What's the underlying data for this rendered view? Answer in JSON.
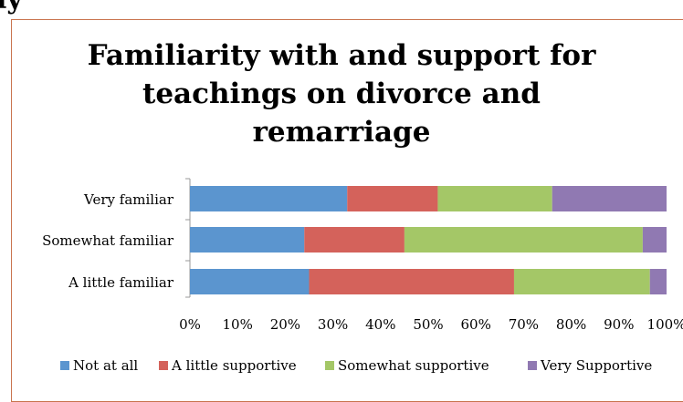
{
  "page": {
    "top_fragment": "ly"
  },
  "chart_data": {
    "type": "bar",
    "orientation": "horizontal",
    "stacked": true,
    "title_lines": [
      "Familiarity with and support for",
      "teachings on divorce and",
      "remarriage"
    ],
    "categories": [
      "Very familiar",
      "Somewhat familiar",
      "A little familiar"
    ],
    "series": [
      {
        "name": "Not at all",
        "color": "#5b95cf",
        "values": [
          33,
          24,
          25
        ]
      },
      {
        "name": "A little supportive",
        "color": "#d4625b",
        "values": [
          19,
          21,
          43
        ]
      },
      {
        "name": "Somewhat supportive",
        "color": "#a4c767",
        "values": [
          24,
          50,
          28.5
        ]
      },
      {
        "name": "Very Supportive",
        "color": "#9079b2",
        "values": [
          24,
          5,
          3.5
        ]
      }
    ],
    "xlim": [
      0,
      100
    ],
    "x_ticks": [
      "0%",
      "10%",
      "20%",
      "30%",
      "40%",
      "50%",
      "60%",
      "70%",
      "80%",
      "90%",
      "100%"
    ],
    "grid": false,
    "legend_position": "bottom"
  }
}
